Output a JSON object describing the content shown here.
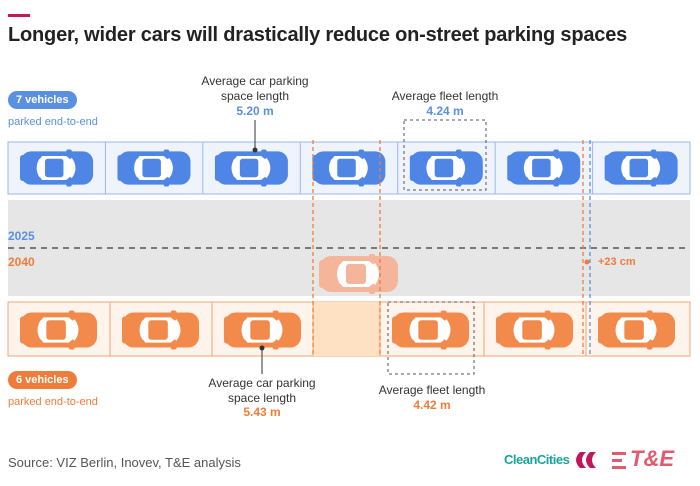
{
  "title": "Longer, wider cars will drastically reduce on-street parking spaces",
  "top": {
    "badge": "7 vehicles",
    "caption": "parked end-to-end",
    "space_label": "Average car parking space length",
    "space_value": "5.20 m",
    "fleet_label": "Average fleet length",
    "fleet_value": "4.24 m"
  },
  "road": {
    "year_top": "2025",
    "year_bottom": "2040",
    "difference": "+23 cm"
  },
  "bottom": {
    "badge": "6 vehicles",
    "caption": "parked end-to-end",
    "space_label": "Average car parking space length",
    "space_value": "5.43 m",
    "fleet_label": "Average fleet length",
    "fleet_value": "4.42 m"
  },
  "source": "Source: VIZ Berlin, Inovev, T&E analysis",
  "logos": [
    "CleanCities",
    "T&E"
  ]
}
